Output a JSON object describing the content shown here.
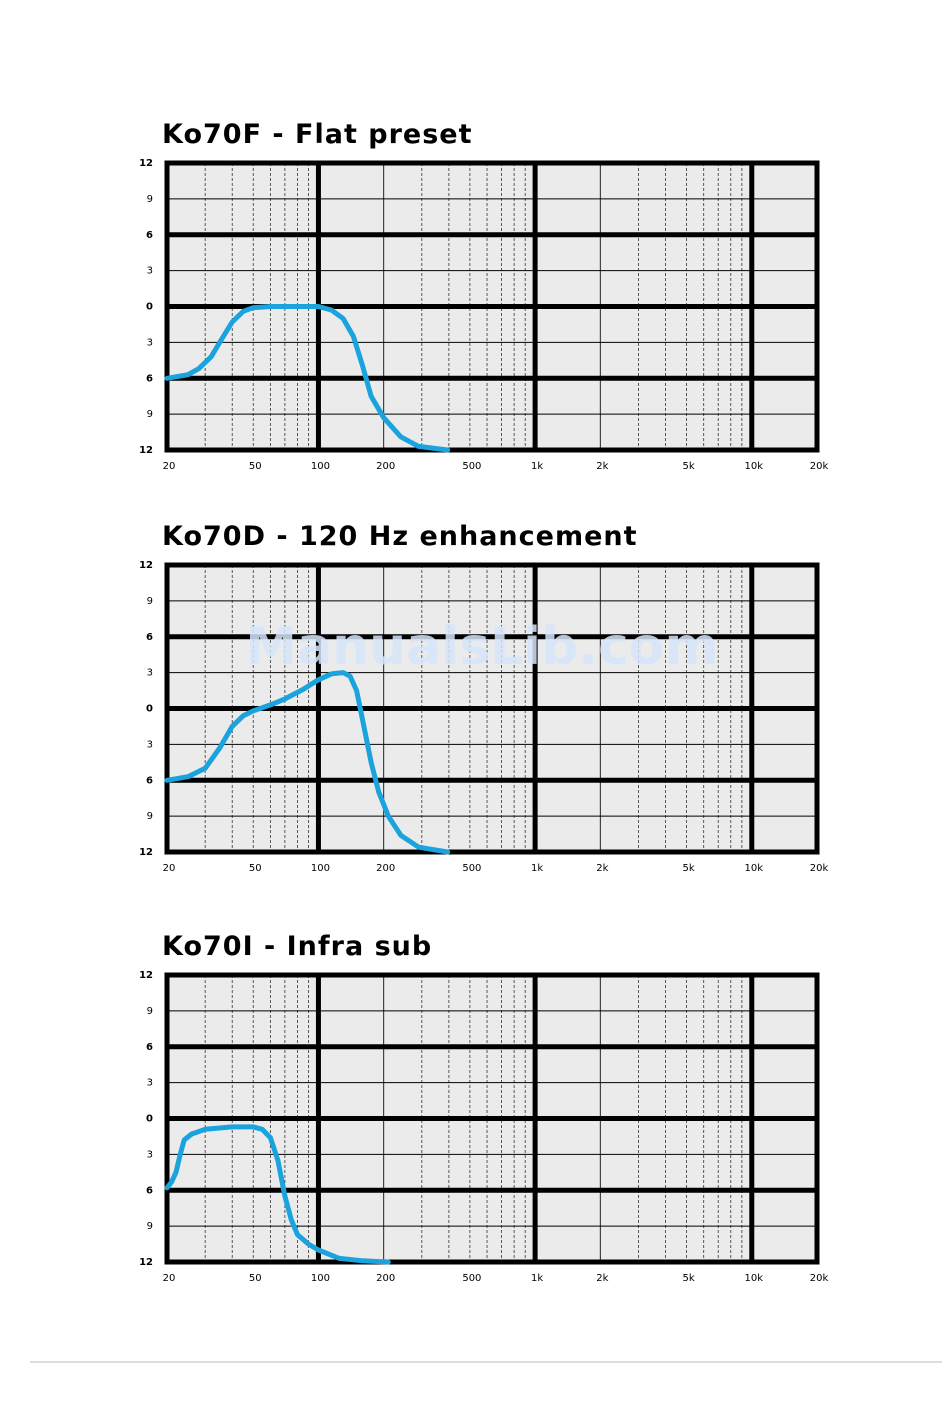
{
  "watermark": "ManualsLib.com",
  "chart_data": [
    {
      "type": "line",
      "title": "Ko70F - Flat preset",
      "log_x": true,
      "color": "#1aa3dd",
      "grid": true,
      "xlim": [
        20,
        20000
      ],
      "ylim": [
        -12,
        12
      ],
      "xticks": [
        20,
        50,
        100,
        200,
        500,
        {
          "value": 1000,
          "label": "1k"
        },
        {
          "value": 2000,
          "label": "2k"
        },
        {
          "value": 5000,
          "label": "5k"
        },
        {
          "value": 10000,
          "label": "10k"
        },
        {
          "value": 20000,
          "label": "20k"
        }
      ],
      "x_minor_ticks": [
        30,
        40,
        60,
        70,
        80,
        90,
        300,
        400,
        600,
        700,
        800,
        900,
        3000,
        4000,
        6000,
        7000,
        8000,
        9000
      ],
      "yticks": [
        12,
        9,
        6,
        3,
        0,
        {
          "value": -3,
          "label": "3"
        },
        {
          "value": -6,
          "label": "6"
        },
        {
          "value": -9,
          "label": "9"
        },
        {
          "value": -12,
          "label": "12"
        }
      ],
      "x": [
        20,
        25,
        28,
        32,
        35,
        40,
        45,
        50,
        60,
        80,
        100,
        115,
        130,
        145,
        160,
        175,
        200,
        240,
        290,
        395
      ],
      "values": [
        -6,
        -5.7,
        -5.2,
        -4.2,
        -3,
        -1.3,
        -0.4,
        -0.1,
        0,
        0,
        0,
        -0.3,
        -1,
        -2.5,
        -5,
        -7.5,
        -9.3,
        -10.9,
        -11.7,
        -12
      ]
    },
    {
      "type": "line",
      "title": "Ko70D - 120 Hz enhancement",
      "log_x": true,
      "color": "#1aa3dd",
      "grid": true,
      "xlim": [
        20,
        20000
      ],
      "ylim": [
        -12,
        12
      ],
      "xticks": [
        20,
        50,
        100,
        200,
        500,
        {
          "value": 1000,
          "label": "1k"
        },
        {
          "value": 2000,
          "label": "2k"
        },
        {
          "value": 5000,
          "label": "5k"
        },
        {
          "value": 10000,
          "label": "10k"
        },
        {
          "value": 20000,
          "label": "20k"
        }
      ],
      "x_minor_ticks": [
        30,
        40,
        60,
        70,
        80,
        90,
        300,
        400,
        600,
        700,
        800,
        900,
        3000,
        4000,
        6000,
        7000,
        8000,
        9000
      ],
      "yticks": [
        12,
        9,
        6,
        3,
        0,
        {
          "value": -3,
          "label": "3"
        },
        {
          "value": -6,
          "label": "6"
        },
        {
          "value": -9,
          "label": "9"
        },
        {
          "value": -12,
          "label": "12"
        }
      ],
      "x": [
        20,
        25,
        30,
        35,
        40,
        45,
        50,
        60,
        70,
        85,
        100,
        115,
        130,
        140,
        150,
        160,
        175,
        190,
        210,
        240,
        290,
        395
      ],
      "values": [
        -6,
        -5.7,
        -5,
        -3.3,
        -1.5,
        -0.6,
        -0.2,
        0.3,
        0.8,
        1.6,
        2.4,
        2.9,
        3,
        2.7,
        1.5,
        -1,
        -4.5,
        -7,
        -9,
        -10.6,
        -11.6,
        -12
      ]
    },
    {
      "type": "line",
      "title": "Ko70I - Infra sub",
      "log_x": true,
      "color": "#1aa3dd",
      "grid": true,
      "xlim": [
        20,
        20000
      ],
      "ylim": [
        -12,
        12
      ],
      "xticks": [
        20,
        50,
        100,
        200,
        500,
        {
          "value": 1000,
          "label": "1k"
        },
        {
          "value": 2000,
          "label": "2k"
        },
        {
          "value": 5000,
          "label": "5k"
        },
        {
          "value": 10000,
          "label": "10k"
        },
        {
          "value": 20000,
          "label": "20k"
        }
      ],
      "x_minor_ticks": [
        30,
        40,
        60,
        70,
        80,
        90,
        300,
        400,
        600,
        700,
        800,
        900,
        3000,
        4000,
        6000,
        7000,
        8000,
        9000
      ],
      "yticks": [
        12,
        9,
        6,
        3,
        0,
        {
          "value": -3,
          "label": "3"
        },
        {
          "value": -6,
          "label": "6"
        },
        {
          "value": -9,
          "label": "9"
        },
        {
          "value": -12,
          "label": "12"
        }
      ],
      "x": [
        20,
        21,
        22,
        23,
        24,
        26,
        30,
        40,
        50,
        55,
        60,
        65,
        70,
        75,
        80,
        90,
        100,
        125,
        160,
        210
      ],
      "values": [
        -5.8,
        -5.3,
        -4.5,
        -3,
        -1.8,
        -1.3,
        -0.9,
        -0.7,
        -0.7,
        -0.9,
        -1.6,
        -3.5,
        -6.5,
        -8.5,
        -9.7,
        -10.5,
        -11,
        -11.7,
        -11.9,
        -12
      ]
    }
  ]
}
